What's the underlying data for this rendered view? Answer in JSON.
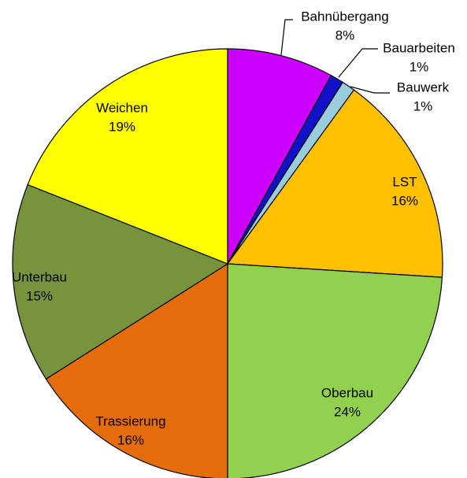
{
  "chart_data": {
    "type": "pie",
    "categories": [
      "Bahnübergang",
      "Bauarbeiten",
      "Bauwerk",
      "LST",
      "Oberbau",
      "Trassierung",
      "Unterbau",
      "Weichen"
    ],
    "values": [
      8,
      1,
      1,
      16,
      24,
      16,
      15,
      19
    ],
    "value_labels": [
      "8%",
      "1%",
      "1%",
      "16%",
      "24%",
      "16%",
      "15%",
      "19%"
    ],
    "colors": [
      "#cc00ff",
      "#1111cc",
      "#99ccdd",
      "#ffc000",
      "#92d050",
      "#e46c0a",
      "#77933c",
      "#ffff00"
    ]
  }
}
